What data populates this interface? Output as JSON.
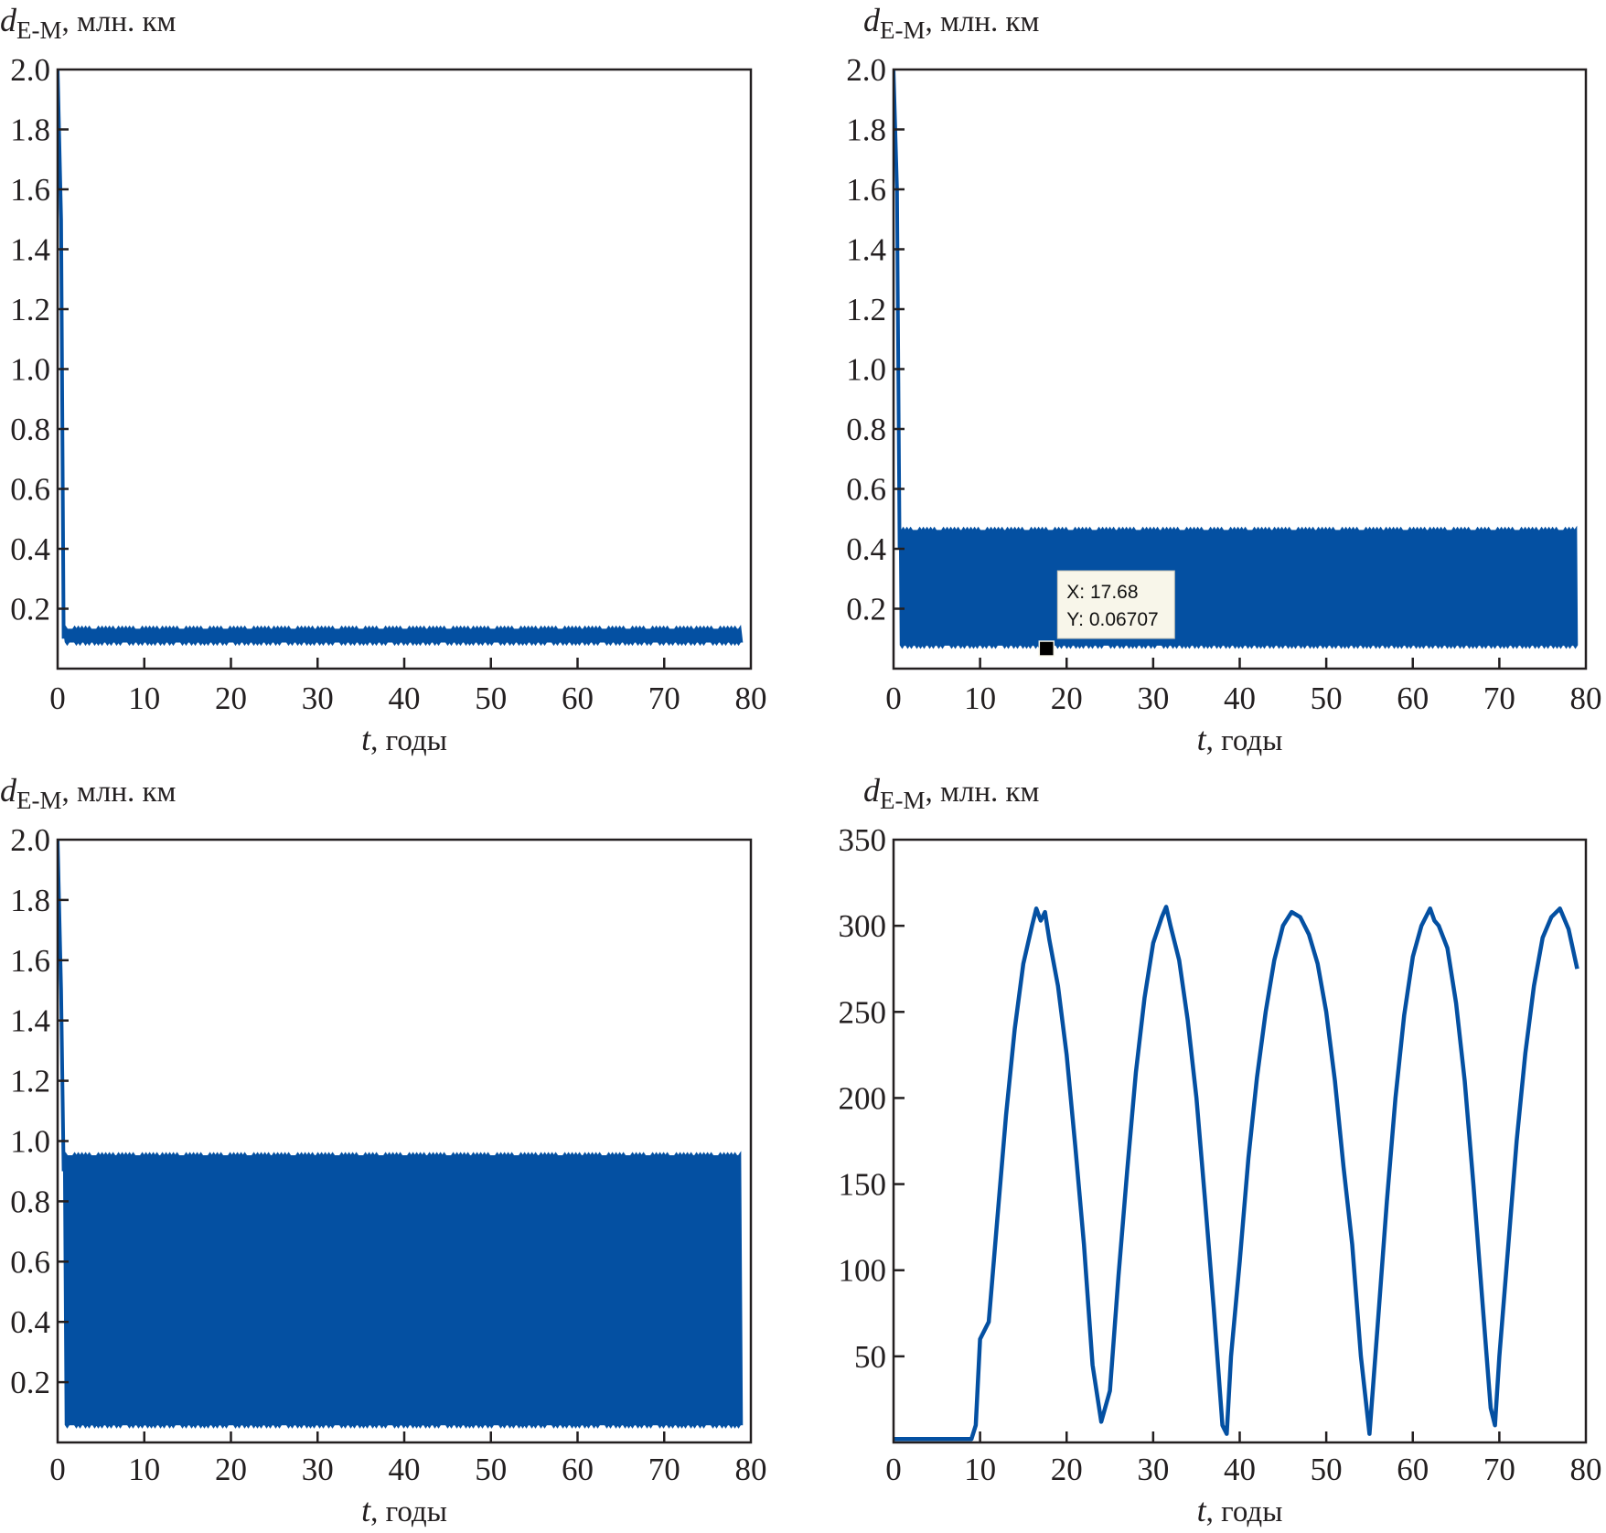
{
  "colors": {
    "series": "#0450a2",
    "axis": "#231f20",
    "tooltip_bg": "#f8f6ea",
    "marker": "#000000"
  },
  "chart_data": [
    {
      "type": "line",
      "panel": "top-left",
      "title": {
        "var": "d",
        "sub": "E-M",
        "unit": ", млн. км"
      },
      "xlabel": {
        "var": "t",
        "unit": ", годы"
      },
      "xlim": [
        0,
        80
      ],
      "ylim": [
        0,
        2.0
      ],
      "xticks": [
        "0",
        "10",
        "20",
        "30",
        "40",
        "50",
        "60",
        "70",
        "80"
      ],
      "yticks": [
        "0.2",
        "0.4",
        "0.6",
        "0.8",
        "1.0",
        "1.2",
        "1.4",
        "1.6",
        "1.8",
        "2.0"
      ],
      "ytick_values": [
        0.2,
        0.4,
        0.6,
        0.8,
        1.0,
        1.2,
        1.4,
        1.6,
        1.8,
        2.0
      ],
      "initial_spike": [
        [
          0,
          2.0
        ],
        [
          0.4,
          1.5
        ],
        [
          0.7,
          0.1
        ]
      ],
      "oscillation_band": {
        "t_start": 0.7,
        "t_end": 79,
        "min": 0.08,
        "max": 0.14
      }
    },
    {
      "type": "line",
      "panel": "top-right",
      "title": {
        "var": "d",
        "sub": "E-M",
        "unit": ", млн. км"
      },
      "xlabel": {
        "var": "t",
        "unit": ", годы"
      },
      "xlim": [
        0,
        80
      ],
      "ylim": [
        0,
        2.0
      ],
      "xticks": [
        "0",
        "10",
        "20",
        "30",
        "40",
        "50",
        "60",
        "70",
        "80"
      ],
      "yticks": [
        "0.2",
        "0.4",
        "0.6",
        "0.8",
        "1.0",
        "1.2",
        "1.4",
        "1.6",
        "1.8",
        "2.0"
      ],
      "ytick_values": [
        0.2,
        0.4,
        0.6,
        0.8,
        1.0,
        1.2,
        1.4,
        1.6,
        1.8,
        2.0
      ],
      "initial_spike": [
        [
          0,
          2.0
        ],
        [
          0.4,
          1.6
        ],
        [
          0.7,
          0.4
        ]
      ],
      "oscillation_band": {
        "t_start": 0.7,
        "t_end": 79,
        "min": 0.07,
        "max": 0.47
      },
      "datatip": {
        "x": 17.68,
        "y": 0.06707,
        "x_text": "X: 17.68",
        "y_text": "Y: 0.06707"
      }
    },
    {
      "type": "line",
      "panel": "bottom-left",
      "title": {
        "var": "d",
        "sub": "E-M",
        "unit": ", млн. км"
      },
      "xlabel": {
        "var": "t",
        "unit": ", годы"
      },
      "xlim": [
        0,
        80
      ],
      "ylim": [
        0,
        2.0
      ],
      "xticks": [
        "0",
        "10",
        "20",
        "30",
        "40",
        "50",
        "60",
        "70",
        "80"
      ],
      "yticks": [
        "0.2",
        "0.4",
        "0.6",
        "0.8",
        "1.0",
        "1.2",
        "1.4",
        "1.6",
        "1.8",
        "2.0"
      ],
      "ytick_values": [
        0.2,
        0.4,
        0.6,
        0.8,
        1.0,
        1.2,
        1.4,
        1.6,
        1.8,
        2.0
      ],
      "initial_spike": [
        [
          0,
          2.0
        ],
        [
          0.4,
          1.5
        ],
        [
          0.7,
          0.9
        ]
      ],
      "oscillation_band": {
        "t_start": 0.7,
        "t_end": 79,
        "min": 0.05,
        "max": 0.96
      }
    },
    {
      "type": "line",
      "panel": "bottom-right",
      "title": {
        "var": "d",
        "sub": "E-M",
        "unit": ", млн. км"
      },
      "xlabel": {
        "var": "t",
        "unit": ", годы"
      },
      "xlim": [
        0,
        80
      ],
      "ylim": [
        0,
        350
      ],
      "xticks": [
        "0",
        "10",
        "20",
        "30",
        "40",
        "50",
        "60",
        "70",
        "80"
      ],
      "yticks": [
        "50",
        "100",
        "150",
        "200",
        "250",
        "300",
        "350"
      ],
      "ytick_values": [
        50,
        100,
        150,
        200,
        250,
        300,
        350
      ],
      "points": [
        [
          0,
          2
        ],
        [
          9,
          2
        ],
        [
          9.5,
          10
        ],
        [
          10,
          60
        ],
        [
          11,
          70
        ],
        [
          12,
          130
        ],
        [
          13,
          190
        ],
        [
          14,
          240
        ],
        [
          15,
          278
        ],
        [
          16,
          300
        ],
        [
          16.5,
          310
        ],
        [
          17,
          303
        ],
        [
          17.5,
          308
        ],
        [
          18,
          292
        ],
        [
          19,
          265
        ],
        [
          20,
          225
        ],
        [
          21,
          172
        ],
        [
          22,
          115
        ],
        [
          23,
          45
        ],
        [
          24,
          12
        ],
        [
          25,
          30
        ],
        [
          26,
          97
        ],
        [
          27,
          158
        ],
        [
          28,
          215
        ],
        [
          29,
          258
        ],
        [
          30,
          290
        ],
        [
          31,
          305
        ],
        [
          31.5,
          311
        ],
        [
          32,
          300
        ],
        [
          33,
          280
        ],
        [
          34,
          245
        ],
        [
          35,
          200
        ],
        [
          36,
          140
        ],
        [
          37,
          78
        ],
        [
          38,
          10
        ],
        [
          38.5,
          5
        ],
        [
          39,
          50
        ],
        [
          40,
          105
        ],
        [
          41,
          165
        ],
        [
          42,
          212
        ],
        [
          43,
          250
        ],
        [
          44,
          280
        ],
        [
          45,
          300
        ],
        [
          46,
          308
        ],
        [
          47,
          305
        ],
        [
          48,
          295
        ],
        [
          49,
          278
        ],
        [
          50,
          250
        ],
        [
          51,
          210
        ],
        [
          52,
          160
        ],
        [
          53,
          115
        ],
        [
          54,
          50
        ],
        [
          55,
          5
        ],
        [
          56,
          72
        ],
        [
          57,
          140
        ],
        [
          58,
          200
        ],
        [
          59,
          248
        ],
        [
          60,
          282
        ],
        [
          61,
          300
        ],
        [
          62,
          310
        ],
        [
          62.5,
          303
        ],
        [
          63,
          300
        ],
        [
          64,
          287
        ],
        [
          65,
          255
        ],
        [
          66,
          210
        ],
        [
          67,
          150
        ],
        [
          68,
          85
        ],
        [
          69,
          20
        ],
        [
          69.5,
          10
        ],
        [
          70,
          50
        ],
        [
          71,
          112
        ],
        [
          72,
          175
        ],
        [
          73,
          226
        ],
        [
          74,
          265
        ],
        [
          75,
          293
        ],
        [
          76,
          305
        ],
        [
          77,
          310
        ],
        [
          78,
          298
        ],
        [
          79,
          275
        ]
      ]
    }
  ]
}
